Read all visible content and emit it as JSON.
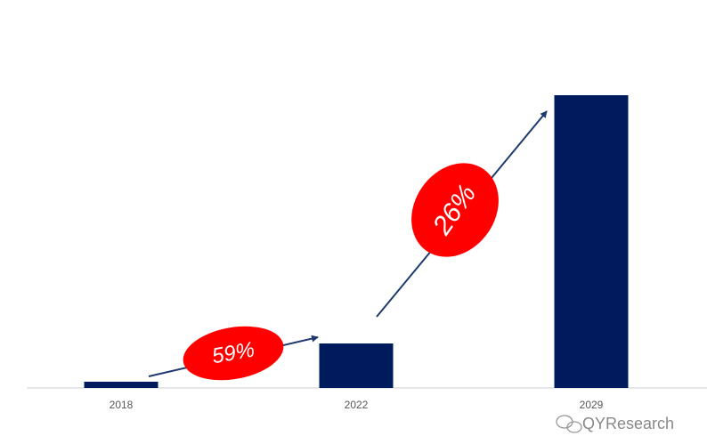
{
  "chart_data": {
    "type": "bar",
    "categories": [
      "2018",
      "2022",
      "2029"
    ],
    "values": [
      7,
      50,
      329
    ],
    "color": "#001a5e",
    "ylim": [
      0,
      360
    ],
    "annotations": [
      "59%",
      "26%"
    ],
    "watermark": "QYResearch"
  }
}
